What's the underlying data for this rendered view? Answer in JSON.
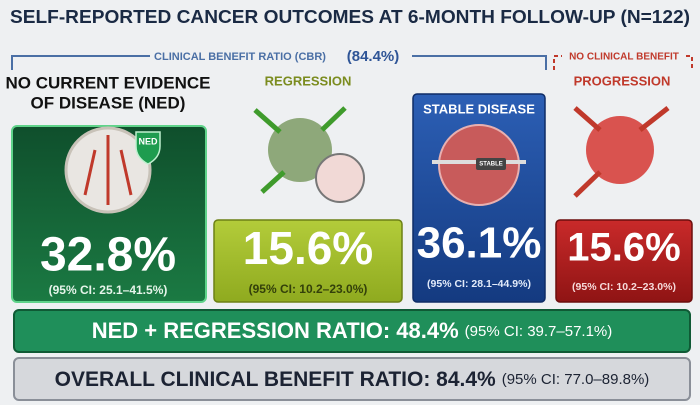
{
  "title": "SELF-REPORTED CANCER OUTCOMES AT 6-MONTH FOLLOW-UP (N=122)",
  "cbr_header": {
    "label": "CLINICAL BENEFIT RATIO (CBR)",
    "value": "(84.4%)"
  },
  "no_benefit_header": "NO CLINICAL BENEFIT",
  "outcomes": [
    {
      "label": [
        "NO CURRENT EVIDENCE",
        "OF DISEASE (NED)"
      ],
      "icon_label": "NED",
      "percent": "32.8%",
      "ci": "(95% CI: 25.1–41.5%)"
    },
    {
      "label": [
        "REGRESSION"
      ],
      "percent": "15.6%",
      "ci": "(95% CI: 10.2–23.0%)"
    },
    {
      "label": [
        "STABLE DISEASE"
      ],
      "icon_label": "STABLE",
      "percent": "36.1%",
      "ci": "(95% CI: 28.1–44.9%)"
    },
    {
      "label": [
        "PROGRESSION"
      ],
      "percent": "15.6%",
      "ci": "(95% CI: 10.2–23.0%)"
    }
  ],
  "summary": [
    {
      "label": "NED + REGRESSION RATIO: 48.4%",
      "ci": "(95% CI: 39.7–57.1%)"
    },
    {
      "label": "OVERALL CLINICAL BENEFIT RATIO: 84.4%",
      "ci": "(95% CI: 77.0–89.8%)"
    }
  ]
}
